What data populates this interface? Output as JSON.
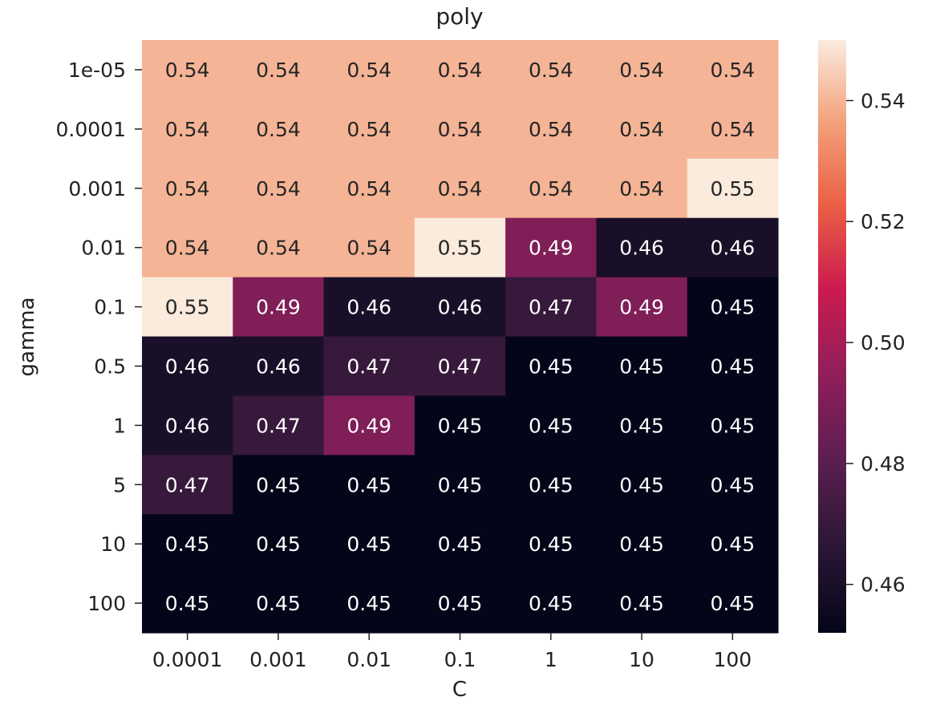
{
  "chart_data": {
    "type": "heatmap",
    "title": "poly",
    "xlabel": "C",
    "ylabel": "gamma",
    "x_categories": [
      "0.0001",
      "0.001",
      "0.01",
      "0.1",
      "1",
      "10",
      "100"
    ],
    "y_categories": [
      "1e-05",
      "0.0001",
      "0.001",
      "0.01",
      "0.1",
      "0.5",
      "1",
      "5",
      "10",
      "100"
    ],
    "values": [
      [
        0.54,
        0.54,
        0.54,
        0.54,
        0.54,
        0.54,
        0.54
      ],
      [
        0.54,
        0.54,
        0.54,
        0.54,
        0.54,
        0.54,
        0.54
      ],
      [
        0.54,
        0.54,
        0.54,
        0.54,
        0.54,
        0.54,
        0.55
      ],
      [
        0.54,
        0.54,
        0.54,
        0.55,
        0.49,
        0.46,
        0.46
      ],
      [
        0.55,
        0.49,
        0.46,
        0.46,
        0.47,
        0.49,
        0.45
      ],
      [
        0.46,
        0.46,
        0.47,
        0.47,
        0.45,
        0.45,
        0.45
      ],
      [
        0.46,
        0.47,
        0.49,
        0.45,
        0.45,
        0.45,
        0.45
      ],
      [
        0.47,
        0.45,
        0.45,
        0.45,
        0.45,
        0.45,
        0.45
      ],
      [
        0.45,
        0.45,
        0.45,
        0.45,
        0.45,
        0.45,
        0.45
      ],
      [
        0.45,
        0.45,
        0.45,
        0.45,
        0.45,
        0.45,
        0.45
      ]
    ],
    "colorscale": "rocket",
    "colorbar": {
      "range": [
        0.452,
        0.55
      ],
      "ticks": [
        0.46,
        0.48,
        0.5,
        0.52,
        0.54
      ],
      "tick_labels": [
        "0.46",
        "0.48",
        "0.50",
        "0.52",
        "0.54"
      ]
    },
    "annotations": true,
    "grid": false
  }
}
